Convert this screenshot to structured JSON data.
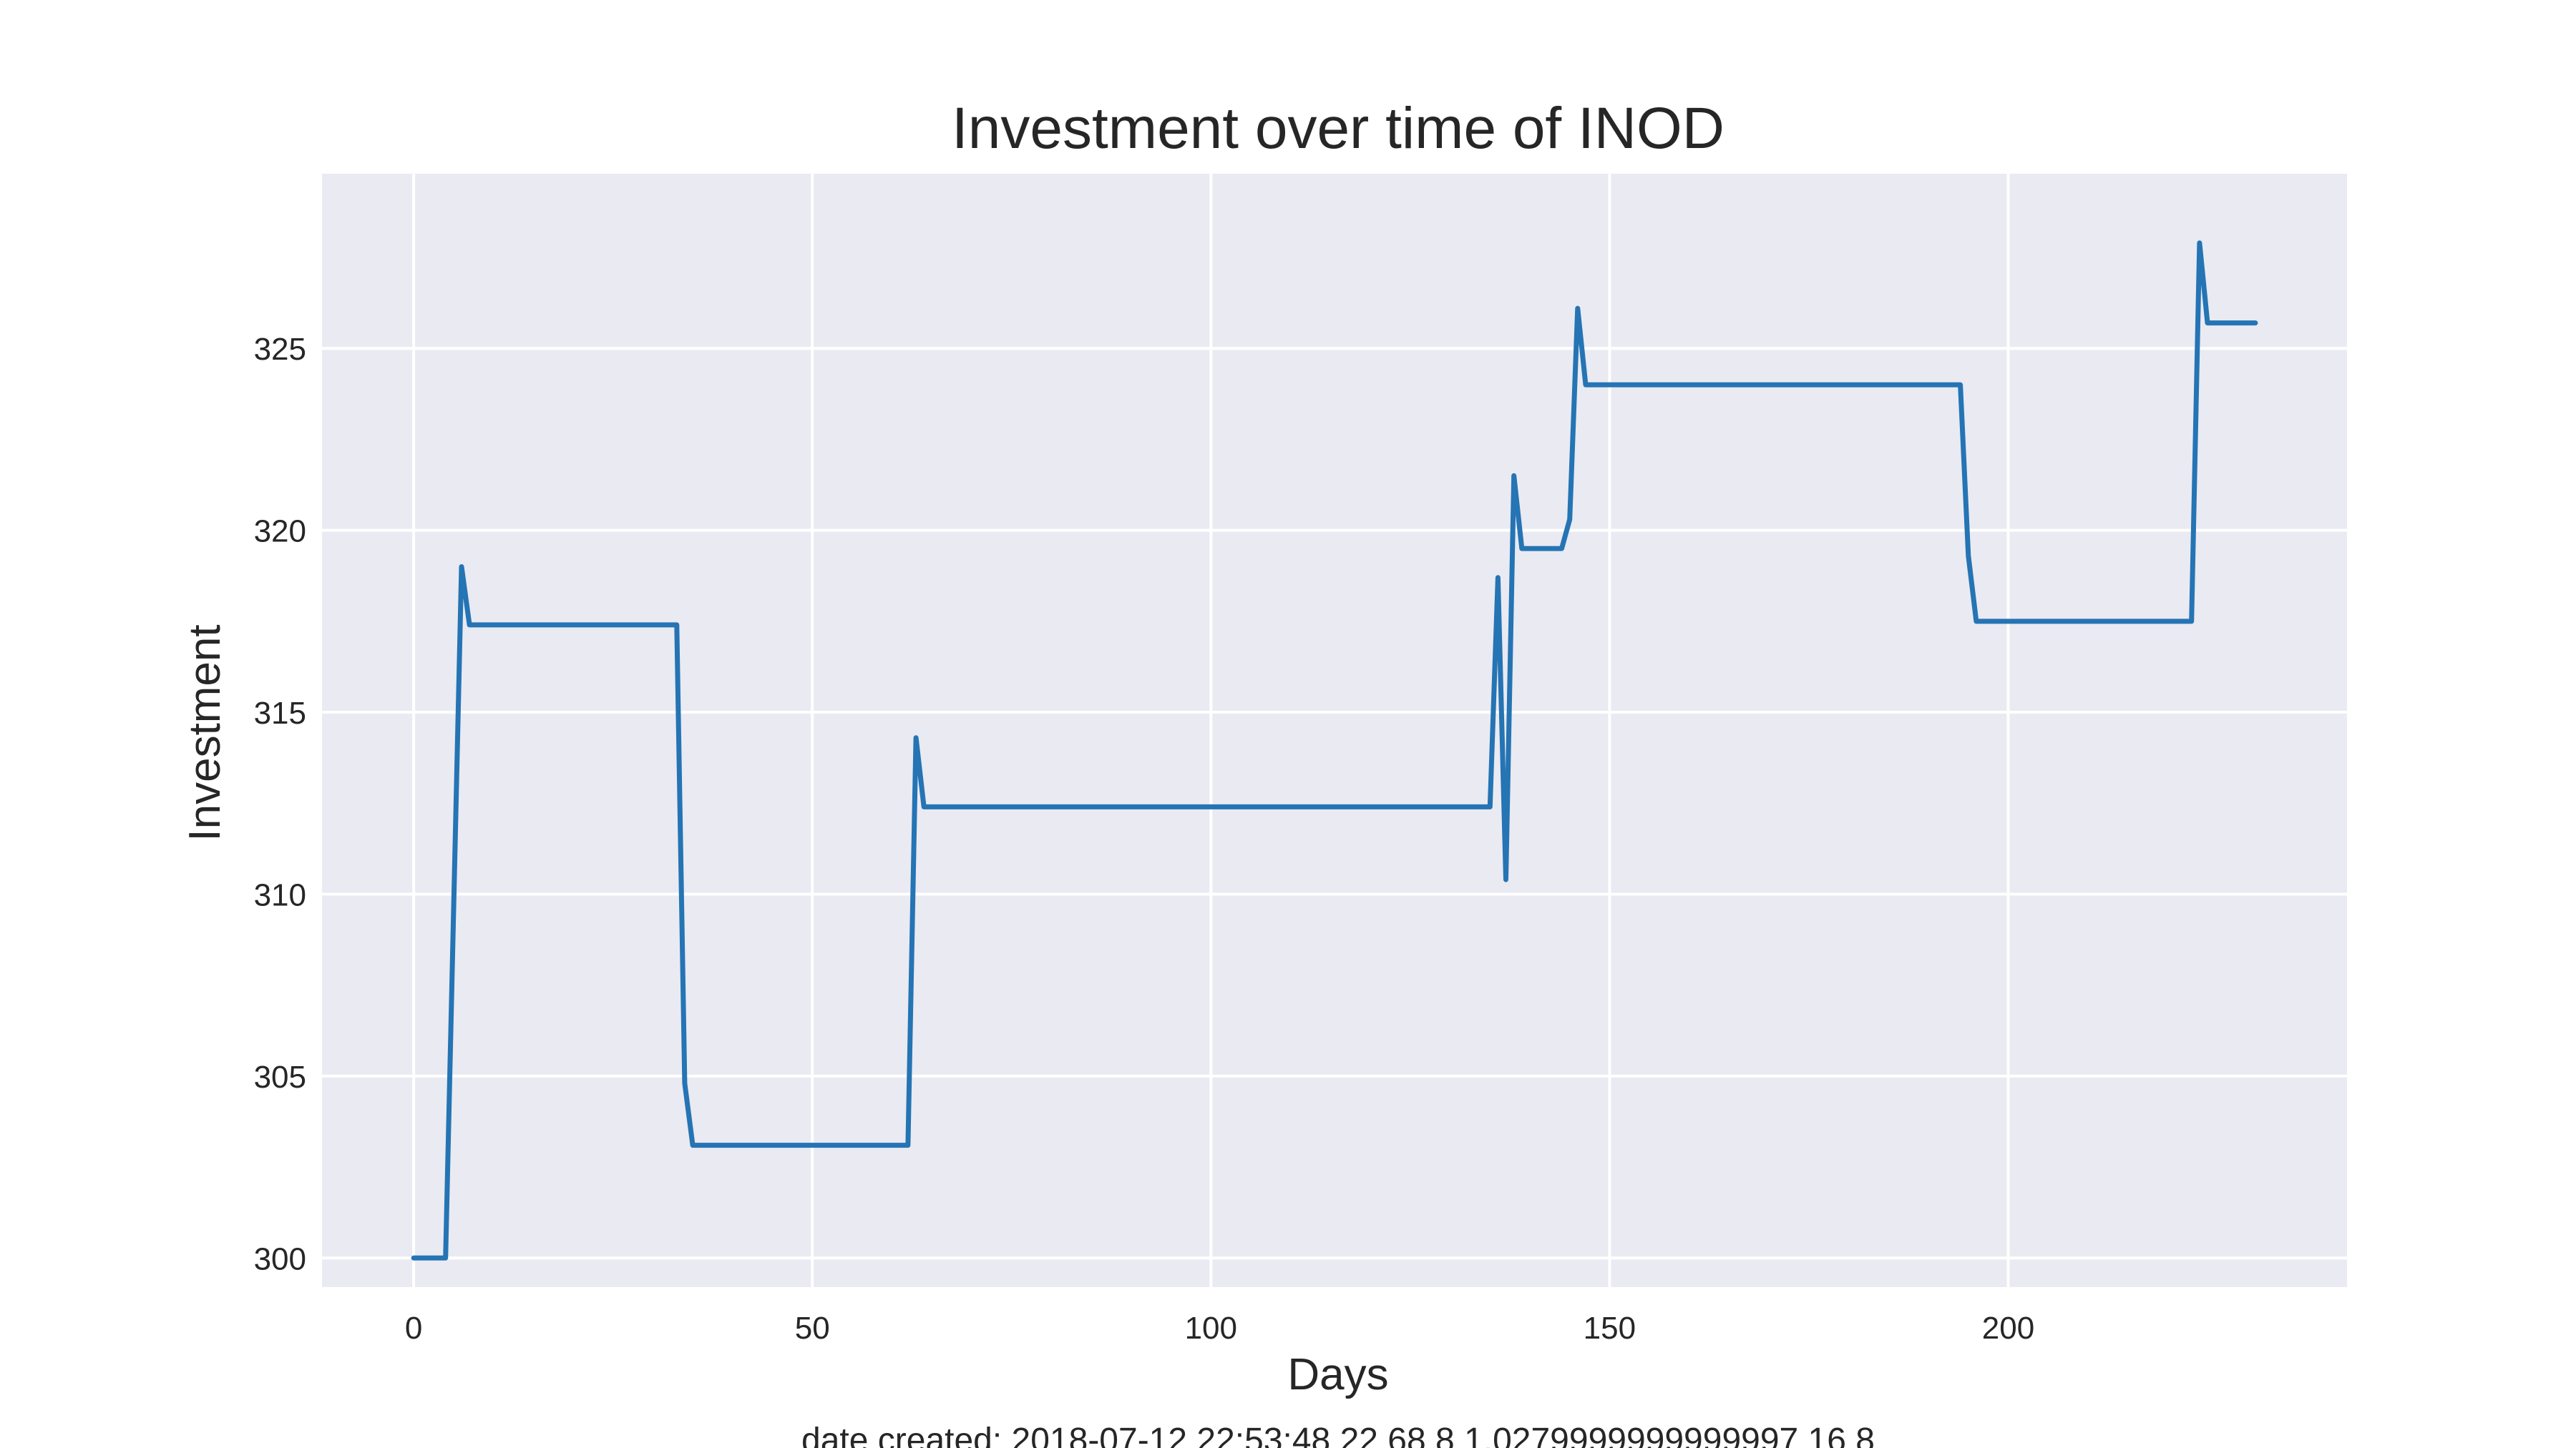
{
  "chart_data": {
    "type": "line",
    "title": "Investment over time of INOD",
    "xlabel": "Days",
    "ylabel": "Investment",
    "xlim": [
      -11.5,
      242.5
    ],
    "ylim": [
      299.2,
      329.8
    ],
    "xticks": [
      0,
      50,
      100,
      150,
      200
    ],
    "yticks": [
      300,
      305,
      310,
      315,
      320,
      325
    ],
    "grid": true,
    "legend": "none",
    "colors": {
      "line": "#2574b4",
      "plot_background": "#eaeaf2",
      "grid": "#ffffff",
      "text": "#262626"
    },
    "series": [
      {
        "x": [
          0,
          4,
          6,
          7,
          33,
          34,
          35,
          62,
          63,
          64,
          135,
          136,
          137,
          138,
          139,
          144,
          145,
          146,
          147,
          194,
          195,
          196,
          223,
          224,
          225,
          231
        ],
        "y": [
          300.0,
          300.0,
          319.0,
          317.4,
          317.4,
          304.8,
          303.1,
          303.1,
          314.3,
          312.4,
          312.4,
          318.7,
          310.4,
          321.5,
          319.5,
          319.5,
          320.3,
          326.1,
          324.0,
          324.0,
          319.3,
          317.5,
          317.5,
          327.9,
          325.7,
          325.7
        ]
      }
    ],
    "footer": "date created: 2018-07-12 22:53:48 22 68 8 1.0279999999999997 16 8"
  }
}
